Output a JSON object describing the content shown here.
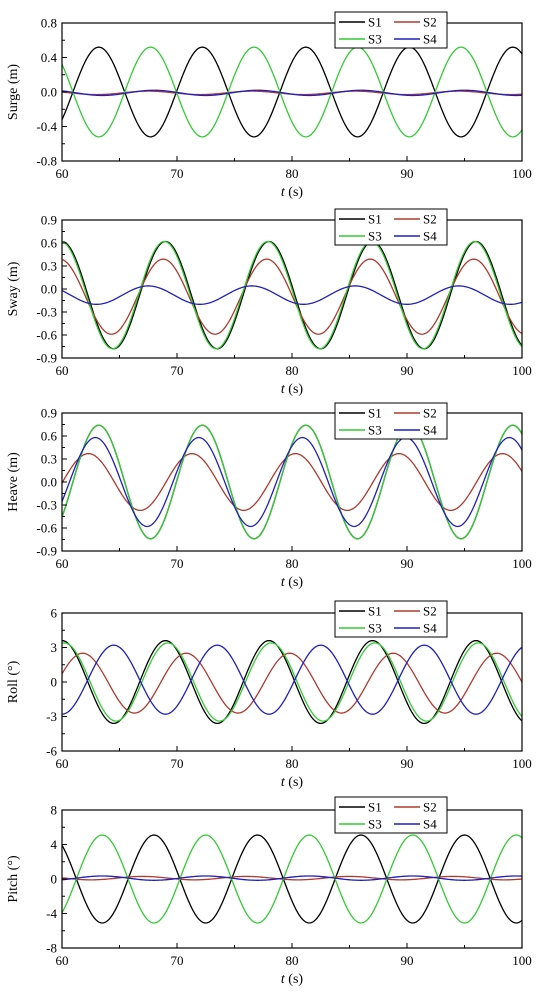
{
  "colors": {
    "S1": "#000000",
    "S2": "#b03a2e",
    "S3": "#33cc33",
    "S4": "#1f1fbf"
  },
  "chart_data": [
    {
      "type": "line",
      "ylabel": "Surge (m)",
      "xlabel_var": "t",
      "xlabel_unit": " (s)",
      "xlim": [
        60,
        100
      ],
      "ylim": [
        -0.8,
        0.8
      ],
      "xticks": [
        60,
        70,
        80,
        90,
        100
      ],
      "yticks": [
        -0.8,
        -0.4,
        0.0,
        0.4,
        0.8
      ],
      "ytick_labels": [
        "-0.8",
        "-0.4",
        "0.0",
        "0.4",
        "0.8"
      ],
      "period": 9.0,
      "series": [
        {
          "name": "S1",
          "amplitude": 0.52,
          "peak_t": 63.2,
          "offset": 0.0
        },
        {
          "name": "S2",
          "amplitude": 0.02,
          "peak_t": 67.5,
          "offset": -0.01
        },
        {
          "name": "S3",
          "amplitude": 0.52,
          "peak_t": 67.7,
          "offset": 0.0
        },
        {
          "name": "S4",
          "amplitude": 0.03,
          "peak_t": 68.0,
          "offset": -0.01
        }
      ]
    },
    {
      "type": "line",
      "ylabel": "Sway (m)",
      "xlabel_var": "t",
      "xlabel_unit": " (s)",
      "xlim": [
        60,
        100
      ],
      "ylim": [
        -0.9,
        0.9
      ],
      "xticks": [
        60,
        70,
        80,
        90,
        100
      ],
      "yticks": [
        -0.9,
        -0.6,
        -0.3,
        0.0,
        0.3,
        0.6,
        0.9
      ],
      "ytick_labels": [
        "-0.9",
        "-0.6",
        "-0.3",
        "0.0",
        "0.3",
        "0.6",
        "0.9"
      ],
      "period": 9.0,
      "series": [
        {
          "name": "S1",
          "amplitude": 0.7,
          "peak_t": 69.0,
          "offset": -0.08
        },
        {
          "name": "S2",
          "amplitude": 0.49,
          "peak_t": 68.8,
          "offset": -0.1
        },
        {
          "name": "S3",
          "amplitude": 0.7,
          "peak_t": 68.9,
          "offset": -0.08
        },
        {
          "name": "S4",
          "amplitude": 0.12,
          "peak_t": 67.5,
          "offset": -0.08
        }
      ]
    },
    {
      "type": "line",
      "ylabel": "Heave (m)",
      "xlabel_var": "t",
      "xlabel_unit": " (s)",
      "xlim": [
        60,
        100
      ],
      "ylim": [
        -0.9,
        0.9
      ],
      "xticks": [
        60,
        70,
        80,
        90,
        100
      ],
      "yticks": [
        -0.9,
        -0.6,
        -0.3,
        0.0,
        0.3,
        0.6,
        0.9
      ],
      "ytick_labels": [
        "-0.9",
        "-0.6",
        "-0.3",
        "0.0",
        "0.3",
        "0.6",
        "0.9"
      ],
      "period": 9.0,
      "series": [
        {
          "name": "S1",
          "amplitude": 0.74,
          "peak_t": 63.2,
          "offset": 0.0
        },
        {
          "name": "S2",
          "amplitude": 0.37,
          "peak_t": 62.3,
          "offset": 0.0
        },
        {
          "name": "S3",
          "amplitude": 0.74,
          "peak_t": 63.2,
          "offset": 0.0
        },
        {
          "name": "S4",
          "amplitude": 0.58,
          "peak_t": 62.9,
          "offset": 0.0
        }
      ]
    },
    {
      "type": "line",
      "ylabel": "Roll (°)",
      "xlabel_var": "t",
      "xlabel_unit": " (s)",
      "xlim": [
        60,
        100
      ],
      "ylim": [
        -6,
        6
      ],
      "xticks": [
        60,
        70,
        80,
        90,
        100
      ],
      "yticks": [
        -6,
        -3,
        0,
        3,
        6
      ],
      "ytick_labels": [
        "-6",
        "-3",
        "0",
        "3",
        "6"
      ],
      "period": 9.0,
      "series": [
        {
          "name": "S1",
          "amplitude": 3.6,
          "peak_t": 69.0,
          "offset": 0.0
        },
        {
          "name": "S2",
          "amplitude": 2.6,
          "peak_t": 70.8,
          "offset": -0.1
        },
        {
          "name": "S3",
          "amplitude": 3.4,
          "peak_t": 69.2,
          "offset": 0.0
        },
        {
          "name": "S4",
          "amplitude": 3.0,
          "peak_t": 64.5,
          "offset": 0.2
        }
      ]
    },
    {
      "type": "line",
      "ylabel": "Pitch (°)",
      "xlabel_var": "t",
      "xlabel_unit": " (s)",
      "xlim": [
        60,
        100
      ],
      "ylim": [
        -8,
        8
      ],
      "xticks": [
        60,
        70,
        80,
        90,
        100
      ],
      "yticks": [
        -8,
        -4,
        0,
        4,
        8
      ],
      "ytick_labels": [
        "-8",
        "-4",
        "0",
        "4",
        "8"
      ],
      "period": 9.0,
      "series": [
        {
          "name": "S1",
          "amplitude": 5.1,
          "peak_t": 68.0,
          "offset": 0.0
        },
        {
          "name": "S2",
          "amplitude": 0.2,
          "peak_t": 67.0,
          "offset": 0.1
        },
        {
          "name": "S3",
          "amplitude": 5.1,
          "peak_t": 63.5,
          "offset": 0.0
        },
        {
          "name": "S4",
          "amplitude": 0.25,
          "peak_t": 63.5,
          "offset": 0.1
        }
      ]
    }
  ]
}
